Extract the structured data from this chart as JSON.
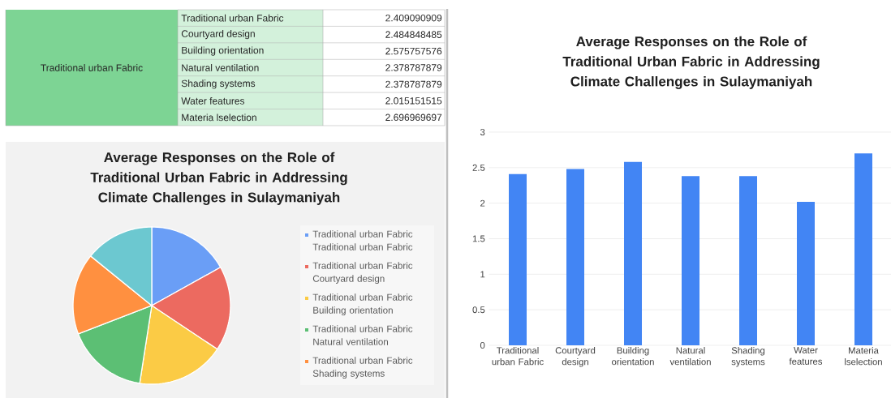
{
  "chart_data": [
    {
      "type": "other",
      "categories": [
        "Traditional urban Fabric",
        "Courtyard design",
        "Building orientation",
        "Natural ventilation",
        "Shading systems",
        "Water features",
        "Materia lselection"
      ],
      "values": [
        2.409090909,
        2.484848485,
        2.575757576,
        2.378787879,
        2.378787879,
        2.015151515,
        2.696969697
      ],
      "value_labels": [
        "2.409090909",
        "2.484848485",
        "2.575757576",
        "2.378787879",
        "2.378787879",
        "2.015151515",
        "2.696969697"
      ],
      "annotations": [
        "Traditional urban Fabric"
      ]
    },
    {
      "type": "bar",
      "title": "Average Responses on the Role of Traditional Urban Fabric in Addressing Climate Challenges in Sulaymaniyah",
      "categories": [
        "Traditional urban Fabric",
        "Courtyard design",
        "Building orientation",
        "Natural ventilation",
        "Shading systems",
        "Water features",
        "Materia lselection"
      ],
      "values": [
        2.41,
        2.48,
        2.58,
        2.38,
        2.38,
        2.02,
        2.7
      ],
      "color": "#4285f4",
      "ylim": [
        0,
        3
      ],
      "yticks": [
        0,
        0.5,
        1,
        1.5,
        2,
        2.5,
        3
      ],
      "grid": "y"
    },
    {
      "type": "pie",
      "title": "Average Responses on the Role of Traditional Urban Fabric in Addressing Climate Challenges in Sulaymaniyah",
      "categories": [
        "Traditional urban Fabric Traditional urban Fabric",
        "Traditional urban Fabric Courtyard design",
        "Traditional urban Fabric Building orientation",
        "Traditional urban Fabric Natural ventilation",
        "Traditional urban Fabric Shading systems",
        null
      ],
      "values": [
        16.91,
        17.45,
        18.09,
        16.7,
        16.7,
        14.15
      ],
      "colors": [
        "#6a9ef6",
        "#ec6a60",
        "#fbcb45",
        "#5cbf74",
        "#ff9040",
        "#6cc8d0"
      ],
      "legend": "right"
    }
  ]
}
